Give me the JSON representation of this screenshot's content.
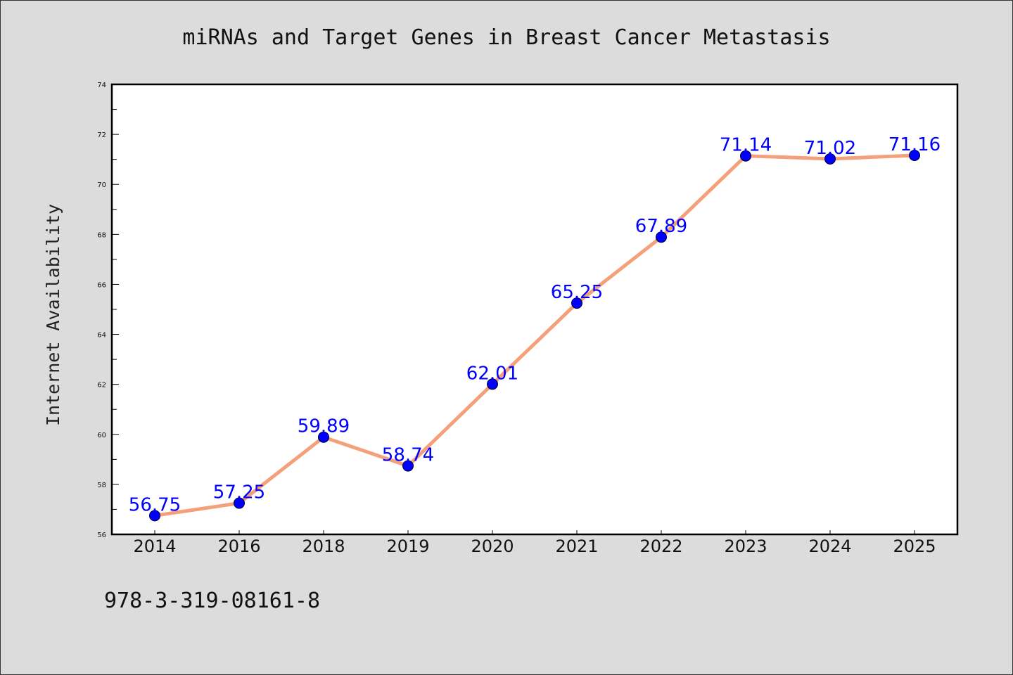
{
  "chart_data": {
    "type": "line",
    "title": "miRNAs and Target Genes in Breast Cancer Metastasis",
    "xlabel": "",
    "ylabel": "Internet Availability",
    "categories": [
      "2014",
      "2016",
      "2018",
      "2019",
      "2020",
      "2021",
      "2022",
      "2023",
      "2024",
      "2025"
    ],
    "series": [
      {
        "values": [
          56.75,
          57.25,
          59.89,
          58.74,
          62.01,
          65.25,
          67.89,
          71.14,
          71.02,
          71.16
        ],
        "labels": [
          "56.75",
          "57.25",
          "59.89",
          "58.74",
          "62.01",
          "65.25",
          "67.89",
          "71.14",
          "71.02",
          "71.16"
        ]
      }
    ],
    "ylim": [
      56,
      74
    ],
    "yticks": [
      "56",
      "58",
      "60",
      "62",
      "64",
      "66",
      "68",
      "70",
      "72",
      "74"
    ],
    "grid": false,
    "colors": {
      "line": "#f4a07a",
      "marker": "#0000ff",
      "data_label": "#0000ff",
      "plot_background": "#ffffff",
      "page_background": "#dcdcdc"
    }
  },
  "footer": {
    "isbn": "978-3-319-08161-8"
  }
}
